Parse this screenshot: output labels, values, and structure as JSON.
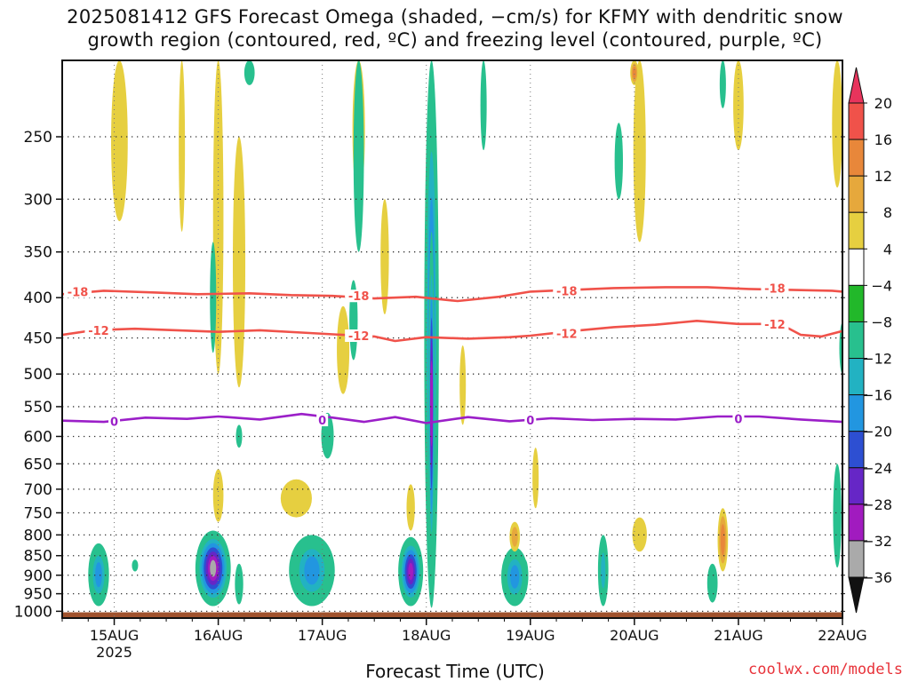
{
  "title_lines": [
    "2025081412 GFS Forecast Omega (shaded, −cm/s) for KFMY with dendritic snow",
    "growth region (contoured, red, ºC) and freezing level (contoured, purple, ºC)"
  ],
  "xlabel": "Forecast Time (UTC)",
  "credit": "coolwx.com/models",
  "chart_data": {
    "type": "heatmap",
    "x_ticks": [
      "15AUG",
      "16AUG",
      "17AUG",
      "18AUG",
      "19AUG",
      "20AUG",
      "21AUG",
      "22AUG"
    ],
    "x_year_label": "2025",
    "x_range_days": [
      14.5,
      22.0
    ],
    "y_ticks": [
      250,
      300,
      350,
      400,
      450,
      500,
      550,
      600,
      650,
      700,
      750,
      800,
      850,
      900,
      950,
      1000
    ],
    "y_range_hpa": [
      200,
      1020
    ],
    "y_scale": "log",
    "grid": true,
    "colorbar": {
      "labels": [
        "20",
        "16",
        "12",
        "8",
        "4",
        "−4",
        "−8",
        "−12",
        "−16",
        "−20",
        "−24",
        "−28",
        "−32",
        "−36"
      ],
      "colors": [
        "#e8345c",
        "#f0524a",
        "#e8873a",
        "#e6a83c",
        "#e6cf40",
        "#ffffff",
        "#22b82a",
        "#28c08e",
        "#22b2c2",
        "#2296e0",
        "#2d4fd2",
        "#6626c6",
        "#a11bbf",
        "#aaaaaa",
        "#111111"
      ]
    },
    "contours": [
      {
        "kind": "dgz",
        "label": "-18",
        "color": "#f0524a",
        "points": [
          [
            14.5,
            396
          ],
          [
            14.9,
            392
          ],
          [
            15.4,
            394
          ],
          [
            15.8,
            396
          ],
          [
            16.3,
            395
          ],
          [
            16.7,
            397
          ],
          [
            17.1,
            398
          ],
          [
            17.5,
            401
          ],
          [
            17.9,
            399
          ],
          [
            18.3,
            404
          ],
          [
            18.7,
            399
          ],
          [
            19.0,
            393
          ],
          [
            19.4,
            391
          ],
          [
            19.8,
            389
          ],
          [
            20.3,
            388
          ],
          [
            20.7,
            388
          ],
          [
            21.1,
            390
          ],
          [
            21.5,
            391
          ],
          [
            21.9,
            392
          ],
          [
            22.0,
            393
          ]
        ]
      },
      {
        "kind": "dgz",
        "label": "-12",
        "color": "#f0524a",
        "points": [
          [
            14.5,
            446
          ],
          [
            14.8,
            440
          ],
          [
            15.2,
            438
          ],
          [
            15.6,
            440
          ],
          [
            16.0,
            442
          ],
          [
            16.4,
            440
          ],
          [
            16.8,
            443
          ],
          [
            17.2,
            446
          ],
          [
            17.5,
            448
          ],
          [
            17.7,
            454
          ],
          [
            18.0,
            449
          ],
          [
            18.4,
            451
          ],
          [
            18.8,
            449
          ],
          [
            19.0,
            447
          ],
          [
            19.4,
            441
          ],
          [
            19.8,
            436
          ],
          [
            20.2,
            433
          ],
          [
            20.6,
            428
          ],
          [
            21.0,
            432
          ],
          [
            21.4,
            432
          ],
          [
            21.6,
            446
          ],
          [
            21.8,
            448
          ],
          [
            22.0,
            441
          ]
        ]
      },
      {
        "kind": "freezing",
        "label": "0",
        "color": "#9b1fc8",
        "points": [
          [
            14.5,
            573
          ],
          [
            14.9,
            575
          ],
          [
            15.3,
            568
          ],
          [
            15.7,
            570
          ],
          [
            16.0,
            566
          ],
          [
            16.4,
            571
          ],
          [
            16.8,
            562
          ],
          [
            17.1,
            568
          ],
          [
            17.4,
            575
          ],
          [
            17.7,
            567
          ],
          [
            18.0,
            577
          ],
          [
            18.4,
            567
          ],
          [
            18.8,
            574
          ],
          [
            19.2,
            569
          ],
          [
            19.6,
            572
          ],
          [
            20.0,
            570
          ],
          [
            20.4,
            571
          ],
          [
            20.8,
            566
          ],
          [
            21.2,
            566
          ],
          [
            21.6,
            571
          ],
          [
            22.0,
            575
          ]
        ]
      }
    ],
    "contour_labels": [
      {
        "text": "-18",
        "day": 14.65,
        "hpa": 393,
        "color": "#f0524a"
      },
      {
        "text": "-18",
        "day": 17.35,
        "hpa": 398,
        "color": "#f0524a"
      },
      {
        "text": "-18",
        "day": 19.35,
        "hpa": 392,
        "color": "#f0524a"
      },
      {
        "text": "-18",
        "day": 21.35,
        "hpa": 389,
        "color": "#f0524a"
      },
      {
        "text": "-12",
        "day": 14.85,
        "hpa": 440,
        "color": "#f0524a"
      },
      {
        "text": "-12",
        "day": 17.35,
        "hpa": 447,
        "color": "#f0524a"
      },
      {
        "text": "-12",
        "day": 19.35,
        "hpa": 444,
        "color": "#f0524a"
      },
      {
        "text": "-12",
        "day": 21.35,
        "hpa": 432,
        "color": "#f0524a"
      },
      {
        "text": "0",
        "day": 15.0,
        "hpa": 574,
        "color": "#9b1fc8"
      },
      {
        "text": "0",
        "day": 17.0,
        "hpa": 572,
        "color": "#9b1fc8"
      },
      {
        "text": "0",
        "day": 19.0,
        "hpa": 572,
        "color": "#9b1fc8"
      },
      {
        "text": "0",
        "day": 21.0,
        "hpa": 570,
        "color": "#9b1fc8"
      }
    ],
    "omega_features": [
      {
        "day": 14.85,
        "top": 820,
        "bottom": 985,
        "w": 0.1,
        "value": -18
      },
      {
        "day": 15.95,
        "top": 790,
        "bottom": 985,
        "w": 0.17,
        "value": -32
      },
      {
        "day": 16.9,
        "top": 800,
        "bottom": 985,
        "w": 0.22,
        "value": -18
      },
      {
        "day": 17.85,
        "top": 805,
        "bottom": 985,
        "w": 0.12,
        "value": -28
      },
      {
        "day": 18.05,
        "top": 200,
        "bottom": 990,
        "w": 0.07,
        "value": -20
      },
      {
        "day": 18.05,
        "top": 330,
        "bottom": 900,
        "w": 0.03,
        "value": -30
      },
      {
        "day": 18.85,
        "top": 830,
        "bottom": 985,
        "w": 0.13,
        "value": -16
      },
      {
        "day": 19.7,
        "top": 800,
        "bottom": 985,
        "w": 0.05,
        "value": -14
      },
      {
        "day": 20.75,
        "top": 870,
        "bottom": 975,
        "w": 0.05,
        "value": -8
      },
      {
        "day": 21.95,
        "top": 650,
        "bottom": 880,
        "w": 0.04,
        "value": -8
      },
      {
        "day": 16.0,
        "top": 660,
        "bottom": 770,
        "w": 0.05,
        "value": 6
      },
      {
        "day": 16.75,
        "top": 680,
        "bottom": 760,
        "w": 0.15,
        "value": 5
      },
      {
        "day": 17.85,
        "top": 690,
        "bottom": 790,
        "w": 0.04,
        "value": 6
      },
      {
        "day": 18.85,
        "top": 770,
        "bottom": 840,
        "w": 0.05,
        "value": 10
      },
      {
        "day": 20.05,
        "top": 760,
        "bottom": 840,
        "w": 0.07,
        "value": 5
      },
      {
        "day": 20.85,
        "top": 740,
        "bottom": 890,
        "w": 0.05,
        "value": 12
      },
      {
        "day": 15.05,
        "top": 200,
        "bottom": 320,
        "w": 0.08,
        "value": 5
      },
      {
        "day": 16.0,
        "top": 200,
        "bottom": 500,
        "w": 0.05,
        "value": 5
      },
      {
        "day": 16.2,
        "top": 250,
        "bottom": 520,
        "w": 0.06,
        "value": 5
      },
      {
        "day": 17.35,
        "top": 200,
        "bottom": 300,
        "w": 0.06,
        "value": 5
      },
      {
        "day": 17.2,
        "top": 410,
        "bottom": 530,
        "w": 0.06,
        "value": 6
      },
      {
        "day": 20.05,
        "top": 200,
        "bottom": 340,
        "w": 0.06,
        "value": 5
      },
      {
        "day": 20.0,
        "top": 200,
        "bottom": 215,
        "w": 0.04,
        "value": 12
      },
      {
        "day": 21.0,
        "top": 200,
        "bottom": 260,
        "w": 0.05,
        "value": 5
      },
      {
        "day": 21.95,
        "top": 200,
        "bottom": 290,
        "w": 0.05,
        "value": 6
      },
      {
        "day": 15.65,
        "top": 200,
        "bottom": 330,
        "w": 0.03,
        "value": 5
      },
      {
        "day": 17.6,
        "top": 300,
        "bottom": 420,
        "w": 0.04,
        "value": 5
      },
      {
        "day": 18.35,
        "top": 460,
        "bottom": 580,
        "w": 0.03,
        "value": 5
      },
      {
        "day": 19.05,
        "top": 620,
        "bottom": 740,
        "w": 0.03,
        "value": 5
      },
      {
        "day": 16.3,
        "top": 200,
        "bottom": 215,
        "w": 0.05,
        "value": -8
      },
      {
        "day": 17.35,
        "top": 200,
        "bottom": 350,
        "w": 0.05,
        "value": -8
      },
      {
        "day": 17.3,
        "top": 380,
        "bottom": 480,
        "w": 0.04,
        "value": -8
      },
      {
        "day": 17.05,
        "top": 560,
        "bottom": 640,
        "w": 0.06,
        "value": -8
      },
      {
        "day": 18.55,
        "top": 200,
        "bottom": 260,
        "w": 0.03,
        "value": -8
      },
      {
        "day": 19.85,
        "top": 240,
        "bottom": 300,
        "w": 0.04,
        "value": -8
      },
      {
        "day": 20.85,
        "top": 200,
        "bottom": 230,
        "w": 0.03,
        "value": -8
      },
      {
        "day": 15.95,
        "top": 340,
        "bottom": 470,
        "w": 0.03,
        "value": -8
      },
      {
        "day": 15.2,
        "top": 860,
        "bottom": 890,
        "w": 0.03,
        "value": -8
      },
      {
        "day": 16.2,
        "top": 870,
        "bottom": 980,
        "w": 0.04,
        "value": -8
      },
      {
        "day": 16.2,
        "top": 580,
        "bottom": 620,
        "w": 0.03,
        "value": -8
      },
      {
        "day": 18.95,
        "top": 860,
        "bottom": 940,
        "w": 0.03,
        "value": -8
      },
      {
        "day": 22.0,
        "top": 430,
        "bottom": 500,
        "w": 0.03,
        "value": -8
      }
    ],
    "ground": {
      "from_hpa": 1003,
      "color": "#a0522d"
    }
  }
}
